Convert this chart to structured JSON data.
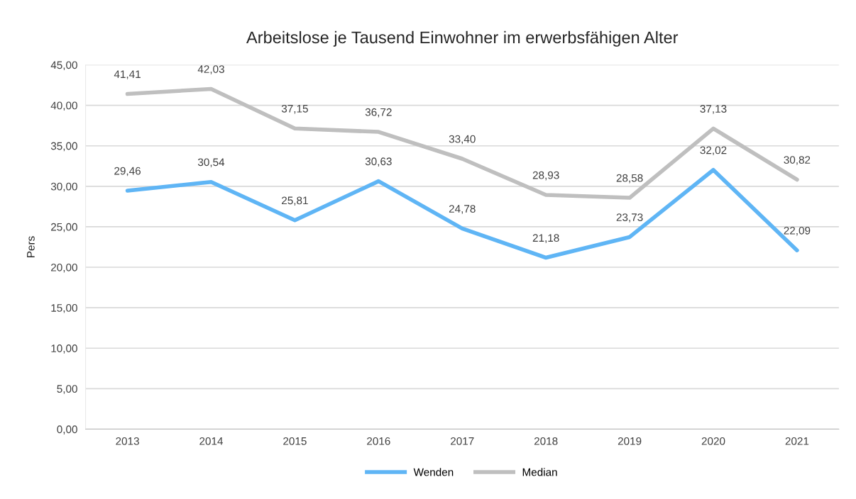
{
  "chart_data": {
    "type": "line",
    "title": "Arbeitslose je Tausend Einwohner im erwerbsfähigen Alter",
    "ylabel": "Pers",
    "categories": [
      "2013",
      "2014",
      "2015",
      "2016",
      "2017",
      "2018",
      "2019",
      "2020",
      "2021"
    ],
    "series": [
      {
        "name": "Wenden",
        "color": "#5fb5f5",
        "values": [
          29.46,
          30.54,
          25.81,
          30.63,
          24.78,
          21.18,
          23.73,
          32.02,
          22.09
        ],
        "value_labels": [
          "29,46",
          "30,54",
          "25,81",
          "30,63",
          "24,78",
          "21,18",
          "23,73",
          "32,02",
          "22,09"
        ]
      },
      {
        "name": "Median",
        "color": "#bfbfbf",
        "values": [
          41.41,
          42.03,
          37.15,
          36.72,
          33.4,
          28.93,
          28.58,
          37.13,
          30.82
        ],
        "value_labels": [
          "41,41",
          "42,03",
          "37,15",
          "36,72",
          "33,40",
          "28,93",
          "28,58",
          "37,13",
          "30,82"
        ]
      }
    ],
    "ylim": [
      0,
      45
    ],
    "yticks": [
      {
        "value": 0,
        "label": "0,00"
      },
      {
        "value": 5,
        "label": "5,00"
      },
      {
        "value": 10,
        "label": "10,00"
      },
      {
        "value": 15,
        "label": "15,00"
      },
      {
        "value": 20,
        "label": "20,00"
      },
      {
        "value": 25,
        "label": "25,00"
      },
      {
        "value": 30,
        "label": "30,00"
      },
      {
        "value": 35,
        "label": "35,00"
      },
      {
        "value": 40,
        "label": "40,00"
      },
      {
        "value": 45,
        "label": "45,00"
      }
    ],
    "grid": "y",
    "legend": "bottom",
    "marker": "none",
    "line_style": "solid"
  }
}
